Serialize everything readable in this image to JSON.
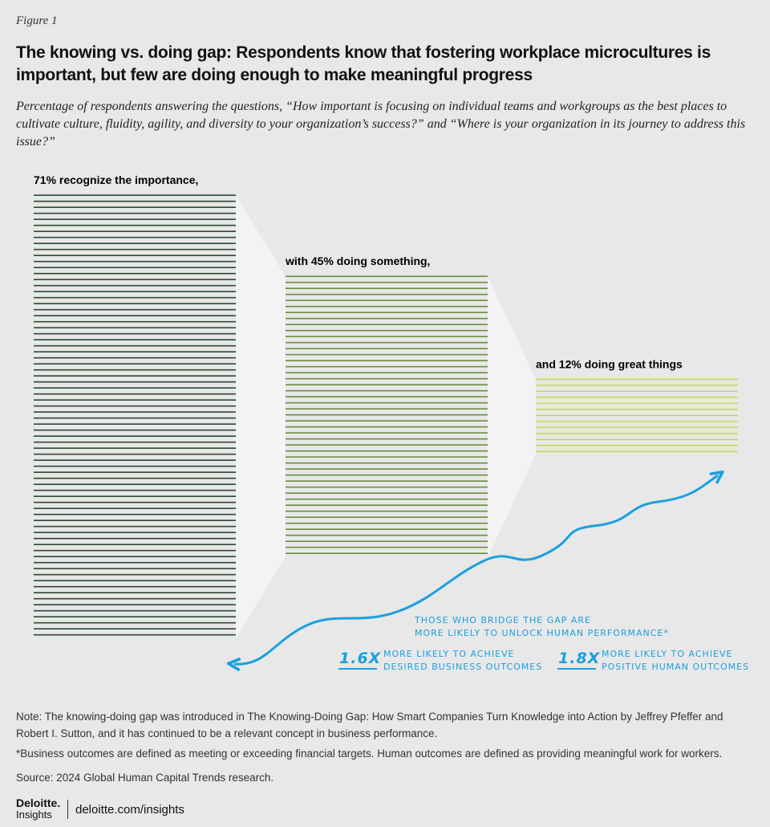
{
  "figure_label": "Figure 1",
  "chart_data": {
    "type": "line-block-funnel",
    "title": "The knowing vs. doing gap: Respondents know that fostering workplace microcultures is important, but few are doing enough to make meaningful progress",
    "subtitle": "Percentage of respondents answering the questions, “How important is focusing on individual teams and workgroups as the best places to cultivate culture, fluidity, agility, and diversity to your organization’s success?” and “Where is your organization in its journey to address this issue?”",
    "values": [
      71,
      45,
      12
    ],
    "value_labels": [
      "71% recognize the importance,",
      "with 45% doing something,",
      "and 12% doing great things"
    ],
    "colors": [
      "#2e4935",
      "#6b8f3c",
      "#c5d845"
    ],
    "annotations": {
      "headline": "Those who bridge the gap are more likely to unlock human performance*",
      "stats": [
        {
          "value": "1.6x",
          "text": "more likely to achieve desired business outcomes"
        },
        {
          "value": "1.8x",
          "text": "more likely to achieve positive human outcomes"
        }
      ]
    }
  },
  "notes": [
    "Note: The knowing-doing gap was introduced in The Knowing-Doing Gap: How Smart Companies Turn Knowledge into Action by Jeffrey Pfeffer and Robert I. Sutton, and it has continued to be a relevant concept in business performance.",
    "*Business outcomes are defined as meeting or exceeding financial targets. Human outcomes are defined as providing meaningful work for workers.",
    "Source: 2024 Global Human Capital Trends research."
  ],
  "footer": {
    "brand": "Deloitte.",
    "sub_brand": "Insights",
    "url": "deloitte.com/insights"
  }
}
